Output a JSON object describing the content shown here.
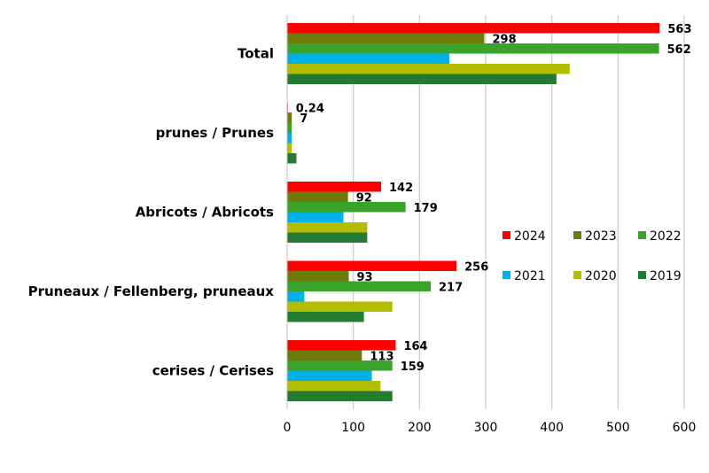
{
  "chart_data": {
    "type": "bar",
    "orientation": "horizontal",
    "title": "",
    "xlabel": "",
    "ylabel": "",
    "xlim": [
      0,
      600
    ],
    "x_ticks": [
      "0",
      "100",
      "200",
      "300",
      "400",
      "500",
      "600"
    ],
    "grid": "vertical",
    "legend_position": "right",
    "categories": [
      "Total",
      "prunes / Prunes",
      "Abricots / Abricots",
      "Pruneaux / Fellenberg, pruneaux",
      "cerises / Cerises"
    ],
    "series": [
      {
        "name": "2024",
        "color": "#ff0000",
        "values": [
          563,
          0.24,
          142,
          256,
          164
        ],
        "labels": [
          "563",
          "0.24",
          "142",
          "256",
          "164"
        ]
      },
      {
        "name": "2023",
        "color": "#6e7a0a",
        "values": [
          298,
          7,
          92,
          93,
          113
        ],
        "labels": [
          "298",
          "7",
          "92",
          "93",
          "113"
        ]
      },
      {
        "name": "2022",
        "color": "#3aa32a",
        "values": [
          562,
          7,
          179,
          217,
          159
        ],
        "labels": [
          "562",
          "",
          "179",
          "217",
          "159"
        ]
      },
      {
        "name": "2021",
        "color": "#00b0e8",
        "values": [
          245,
          7,
          85,
          26,
          128
        ],
        "labels": [
          "",
          "",
          "",
          "",
          ""
        ]
      },
      {
        "name": "2020",
        "color": "#b2bd00",
        "values": [
          427,
          7,
          121,
          159,
          141
        ],
        "labels": [
          "",
          "",
          "",
          "",
          ""
        ]
      },
      {
        "name": "2019",
        "color": "#257a32",
        "values": [
          407,
          14,
          121,
          116,
          159
        ],
        "labels": [
          "",
          "",
          "",
          "",
          ""
        ]
      }
    ]
  }
}
